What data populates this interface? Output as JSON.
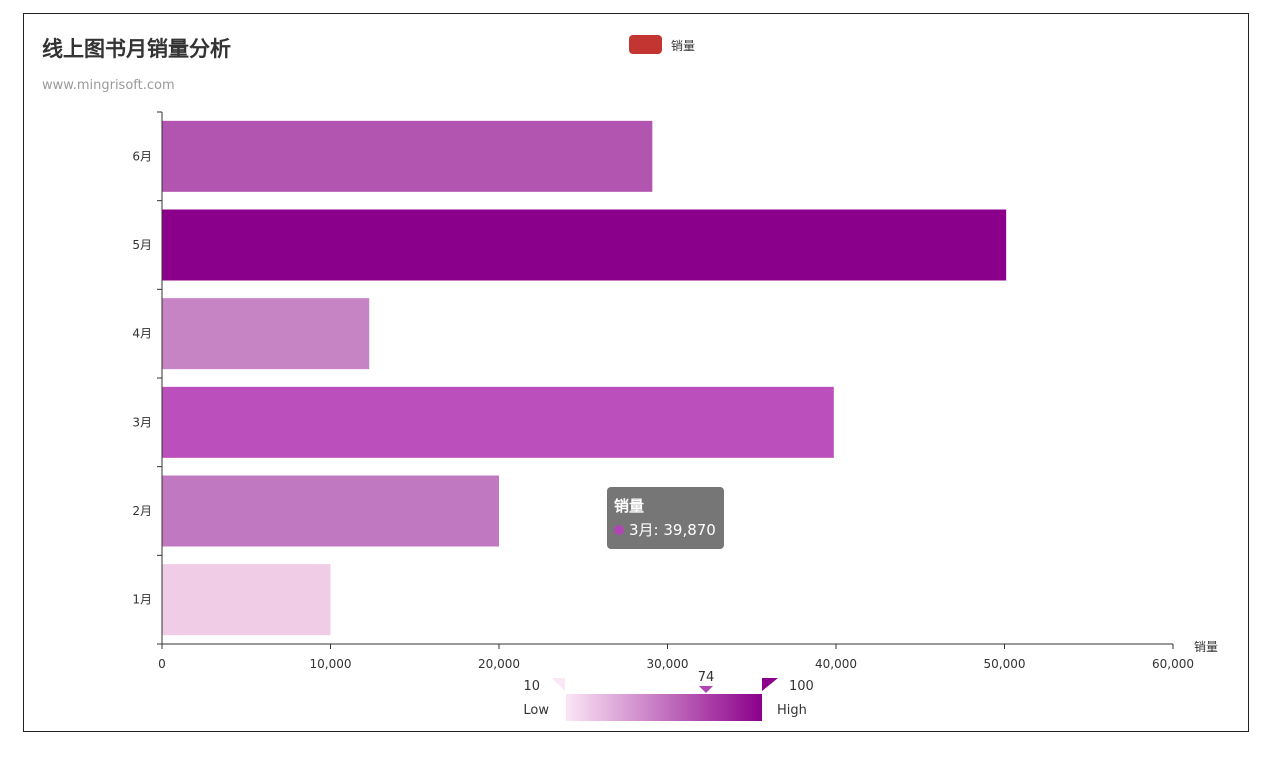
{
  "colors": {
    "legend_swatch": "#c23531",
    "gradient_low": "#fbe6f5",
    "gradient_high": "#8b008b",
    "bar_colors": [
      "#f0cce6",
      "#c078c0",
      "#bb4fbb",
      "#c784c5",
      "#8b008b",
      "#b255b0"
    ],
    "tooltip_dot": "#b245b4"
  },
  "chart_data": {
    "type": "bar",
    "orientation": "horizontal",
    "title": "线上图书月销量分析",
    "subtitle": "www.mingrisoft.com",
    "categories": [
      "1月",
      "2月",
      "3月",
      "4月",
      "5月",
      "6月"
    ],
    "series": [
      {
        "name": "销量",
        "values": [
          10000,
          20000,
          39870,
          12300,
          50100,
          29100
        ]
      }
    ],
    "xlabel": "销量",
    "ylabel": "",
    "xlim": [
      0,
      60000
    ],
    "x_ticks": [
      "0",
      "10,000",
      "20,000",
      "30,000",
      "40,000",
      "50,000",
      "60,000"
    ],
    "legend": {
      "position": "top-center",
      "label": "销量"
    },
    "grid": false,
    "visual_map": {
      "min": 10,
      "max": 100,
      "min_label": "10",
      "max_label": "100",
      "low_label": "Low",
      "high_label": "High",
      "indicator_value": 74,
      "indicator_label": "74"
    },
    "tooltip": {
      "title": "销量",
      "row": "3月: 39,870"
    }
  }
}
